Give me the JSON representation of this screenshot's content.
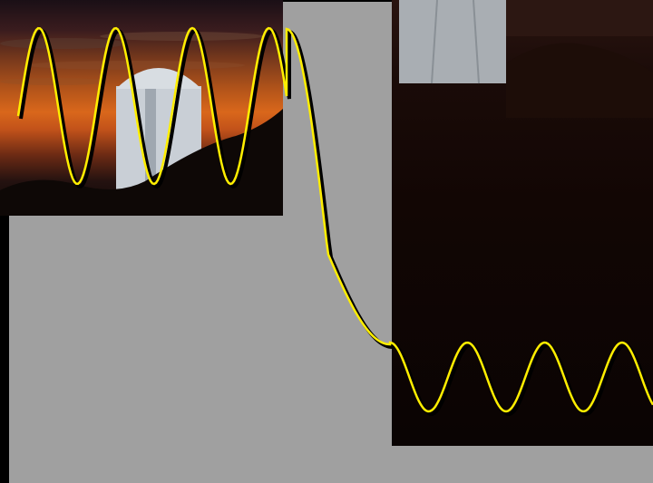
{
  "scene": {
    "description_colors": {
      "sky_orange": "#d9671b",
      "dark_ground": "#120604",
      "block_gray": "#a0a0a0",
      "wave_yellow": "#ffee00",
      "wave_shadow": "#000000"
    }
  },
  "wave": {
    "left_segment": {
      "cycles": 3.5,
      "amplitude_units": 1.0
    },
    "transition": {
      "type": "decay"
    },
    "right_segment": {
      "cycles": 3,
      "amplitude_units": 0.55
    }
  }
}
